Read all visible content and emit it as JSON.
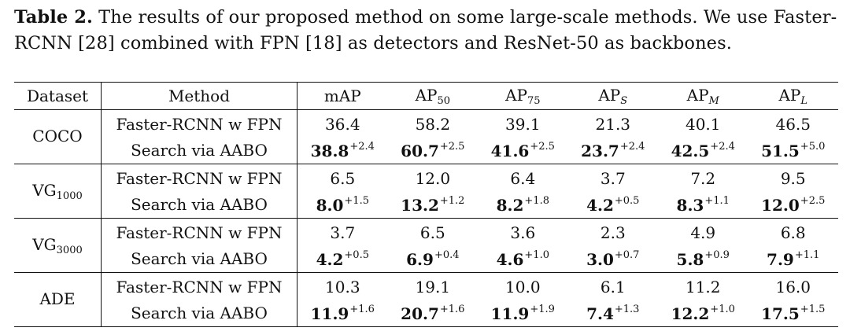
{
  "caption": {
    "label": "Table 2.",
    "text": " The results of our proposed method on some large-scale methods. We use Faster-RCNN [28] combined with FPN [18] as detectors and ResNet-50 as backbones."
  },
  "headers": {
    "dataset": "Dataset",
    "method": "Method",
    "map": "mAP",
    "ap50_base": "AP",
    "ap50_sub": "50",
    "ap75_base": "AP",
    "ap75_sub": "75",
    "aps_base": "AP",
    "aps_sub": "S",
    "apm_base": "AP",
    "apm_sub": "M",
    "apl_base": "AP",
    "apl_sub": "L"
  },
  "rows": [
    {
      "dataset": "COCO",
      "dataset_sub": "",
      "baseline": {
        "method": "Faster-RCNN w FPN",
        "values": [
          "36.4",
          "58.2",
          "39.1",
          "21.3",
          "40.1",
          "46.5"
        ]
      },
      "ours": {
        "method": "Search via AABO",
        "values": [
          "38.8",
          "60.7",
          "41.6",
          "23.7",
          "42.5",
          "51.5"
        ],
        "deltas": [
          "+2.4",
          "+2.5",
          "+2.5",
          "+2.4",
          "+2.4",
          "+5.0"
        ]
      }
    },
    {
      "dataset": "VG",
      "dataset_sub": "1000",
      "baseline": {
        "method": "Faster-RCNN w FPN",
        "values": [
          "6.5",
          "12.0",
          "6.4",
          "3.7",
          "7.2",
          "9.5"
        ]
      },
      "ours": {
        "method": "Search via AABO",
        "values": [
          "8.0",
          "13.2",
          "8.2",
          "4.2",
          "8.3",
          "12.0"
        ],
        "deltas": [
          "+1.5",
          "+1.2",
          "+1.8",
          "+0.5",
          "+1.1",
          "+2.5"
        ]
      }
    },
    {
      "dataset": "VG",
      "dataset_sub": "3000",
      "baseline": {
        "method": "Faster-RCNN w FPN",
        "values": [
          "3.7",
          "6.5",
          "3.6",
          "2.3",
          "4.9",
          "6.8"
        ]
      },
      "ours": {
        "method": "Search via AABO",
        "values": [
          "4.2",
          "6.9",
          "4.6",
          "3.0",
          "5.8",
          "7.9"
        ],
        "deltas": [
          "+0.5",
          "+0.4",
          "+1.0",
          "+0.7",
          "+0.9",
          "+1.1"
        ]
      }
    },
    {
      "dataset": "ADE",
      "dataset_sub": "",
      "baseline": {
        "method": "Faster-RCNN w FPN",
        "values": [
          "10.3",
          "19.1",
          "10.0",
          "6.1",
          "11.2",
          "16.0"
        ]
      },
      "ours": {
        "method": "Search via AABO",
        "values": [
          "11.9",
          "20.7",
          "11.9",
          "7.4",
          "12.2",
          "17.5"
        ],
        "deltas": [
          "+1.6",
          "+1.6",
          "+1.9",
          "+1.3",
          "+1.0",
          "+1.5"
        ]
      }
    }
  ]
}
